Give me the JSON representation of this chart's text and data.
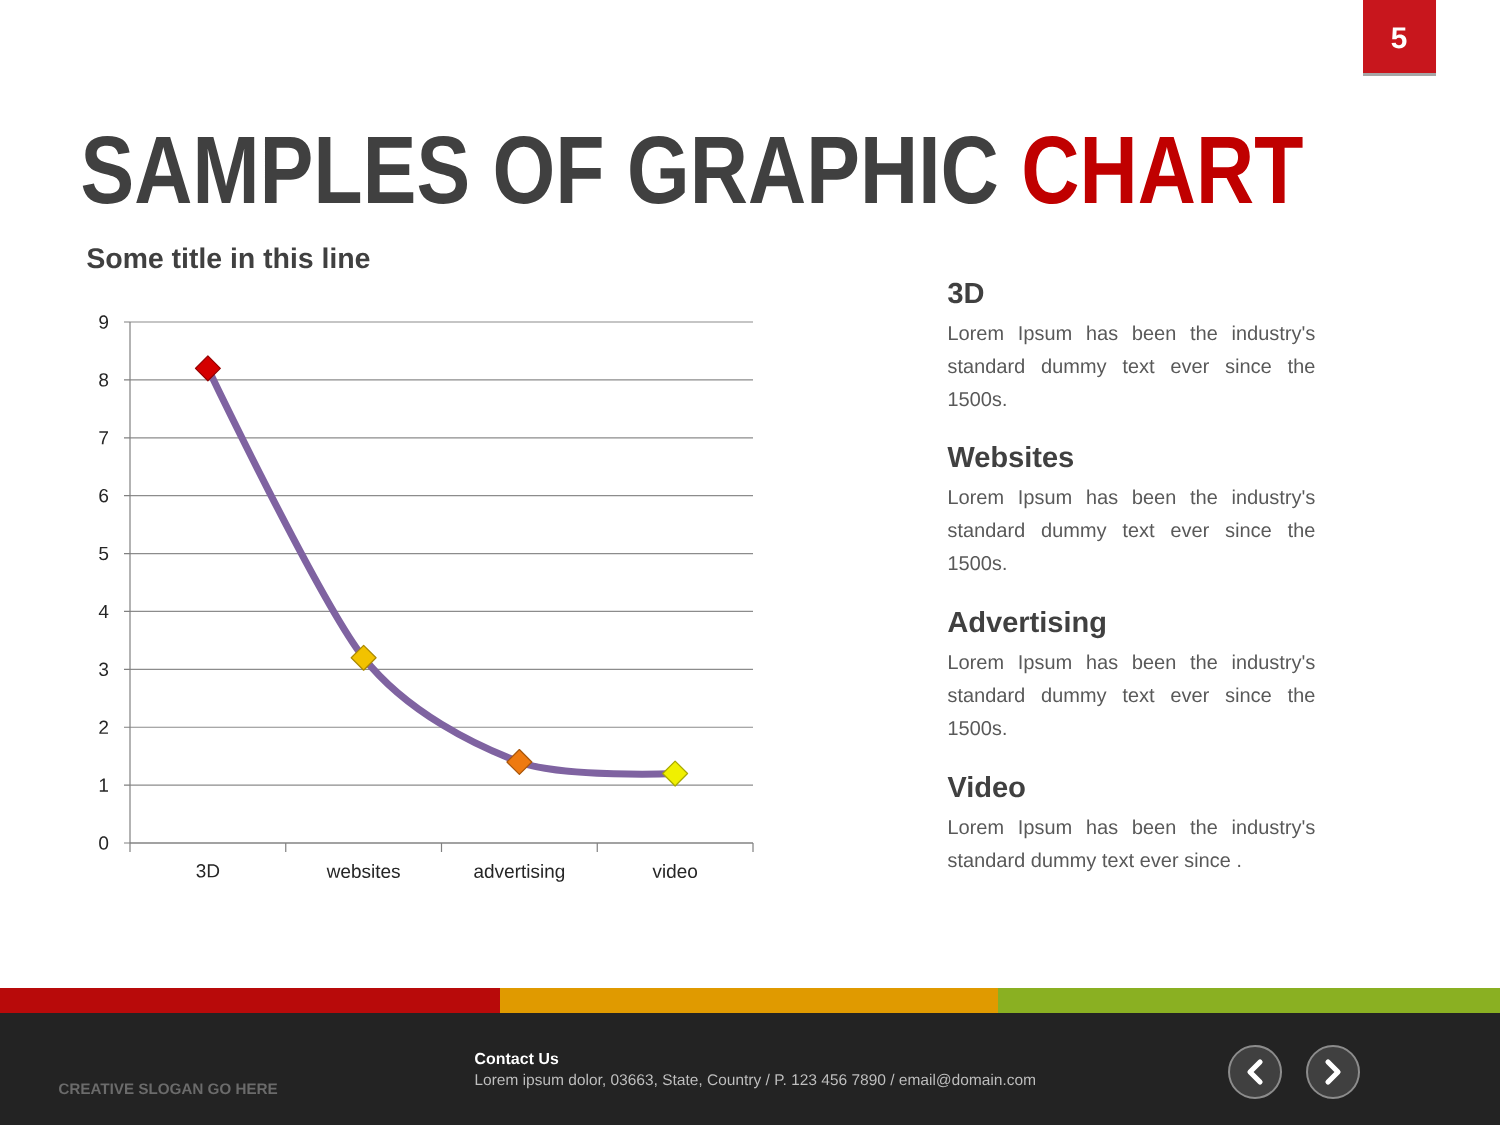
{
  "chart_data": {
    "type": "line",
    "title": "SAMPLES OF GRAPHIC CHART",
    "subtitle": "Some title in this line",
    "categories": [
      "3D",
      "websites",
      "advertising",
      "video"
    ],
    "series": [
      {
        "color": "#7f63a1",
        "colors": [
          "#d40000",
          "#f2c200",
          "#ee7a10",
          "#f0f000"
        ],
        "values": [
          8.2,
          3.2,
          1.4,
          1.2
        ]
      }
    ],
    "ylim": [
      0,
      9
    ],
    "yticks": [
      0,
      1,
      2,
      3,
      4,
      5,
      6,
      7,
      8,
      9
    ],
    "grid": "y",
    "marker": "diamond",
    "line_style": "solid",
    "annotations": [
      "3D",
      "Lorem Ipsum has been the industry's standard dummy text ever since the 1500s.",
      "Websites",
      "Lorem Ipsum has been the industry's standard dummy text ever since the 1500s.",
      "Advertising",
      "Lorem Ipsum has been the industry's standard dummy text ever since the 1500s.",
      "Video",
      "Lorem Ipsum has been the industry's standard dummy text ever since .",
      "Contact Us",
      "Lorem ipsum dolor, 03663, State, Country / P.  123 456 7890 / email@domain.com",
      "CREATIVE SLOGAN GO HERE",
      "5"
    ]
  }
}
